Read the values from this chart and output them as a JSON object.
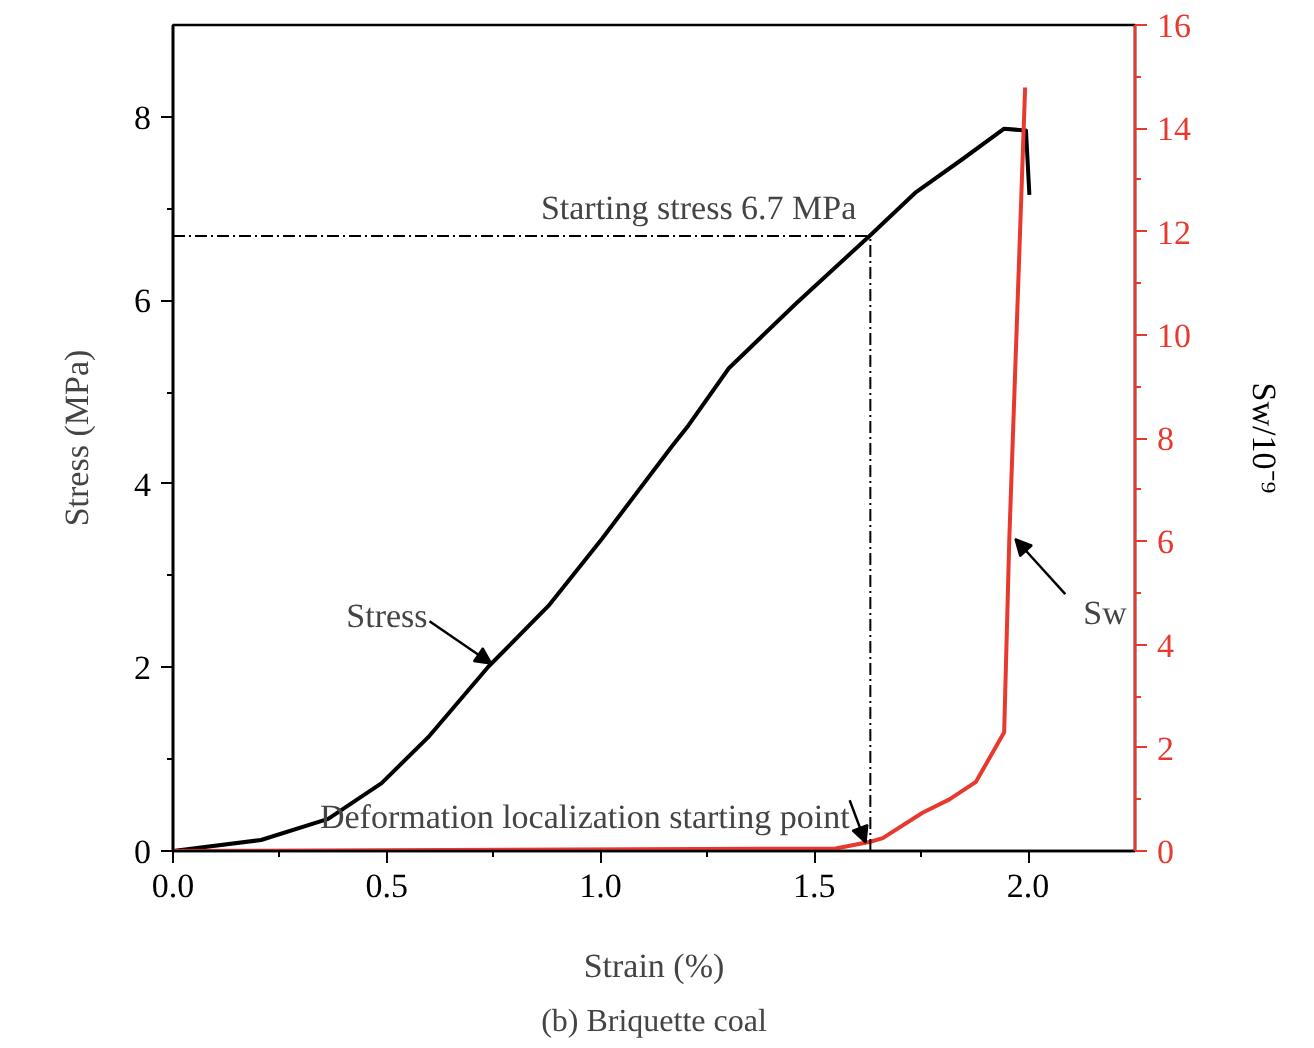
{
  "chart_data": {
    "type": "line",
    "xlabel": "Strain (%)",
    "ylabel": "Stress (MPa)",
    "y2label": "Sw/10⁻⁹",
    "xlim": [
      0,
      2.25
    ],
    "ylim": [
      0,
      9
    ],
    "y2lim": [
      0,
      16
    ],
    "xticks": [
      {
        "value": 0,
        "label": "0.0"
      },
      {
        "value": 0.5,
        "label": "0.5"
      },
      {
        "value": 1,
        "label": "1.0"
      },
      {
        "value": 1.5,
        "label": "1.5"
      },
      {
        "value": 2,
        "label": "2.0"
      }
    ],
    "yticks": [
      0,
      2,
      4,
      6,
      8
    ],
    "y2ticks": [
      0,
      2,
      4,
      6,
      8,
      10,
      12,
      14,
      16
    ],
    "grid": false,
    "marker": "none",
    "line_style": "solid",
    "series": [
      {
        "color": "#000000",
        "x": [
          0,
          0.206,
          0.363,
          0.488,
          0.597,
          0.738,
          0.878,
          1.003,
          1.167,
          1.206,
          1.3,
          1.456,
          1.631,
          1.738,
          1.847,
          1.944,
          1.995,
          2.003
        ],
        "values": [
          0,
          0.12,
          0.35,
          0.74,
          1.24,
          2.01,
          2.67,
          3.4,
          4.41,
          4.64,
          5.26,
          5.96,
          6.71,
          7.18,
          7.54,
          7.87,
          7.85,
          7.15
        ]
      },
      {
        "color": "#e8392f",
        "axis": "y2",
        "x": [
          0,
          1.55,
          1.631,
          1.66,
          1.753,
          1.816,
          1.878,
          1.944,
          1.956,
          1.993
        ],
        "values": [
          0,
          0.05,
          0.18,
          0.25,
          0.74,
          1.0,
          1.34,
          2.3,
          6.04,
          14.79
        ]
      }
    ],
    "ref_lines": [
      {
        "axis": "y",
        "value": 6.7,
        "line_style": "dashed",
        "color": "#000000"
      },
      {
        "axis": "x",
        "value": 1.631,
        "line_style": "dashed",
        "color": "#000000"
      }
    ],
    "annotations": [
      {
        "text": "Starting stress 6.7 MPa",
        "x": 1.631,
        "y": 6.7
      },
      {
        "text": "Stress",
        "x": 0.745,
        "y": 2.04
      },
      {
        "text": "Sw",
        "x": 1.97,
        "y": 3.4
      },
      {
        "text": "Deformation localization starting point",
        "x": 1.62,
        "y": 0.09
      },
      "(b) Briquette coal"
    ]
  }
}
